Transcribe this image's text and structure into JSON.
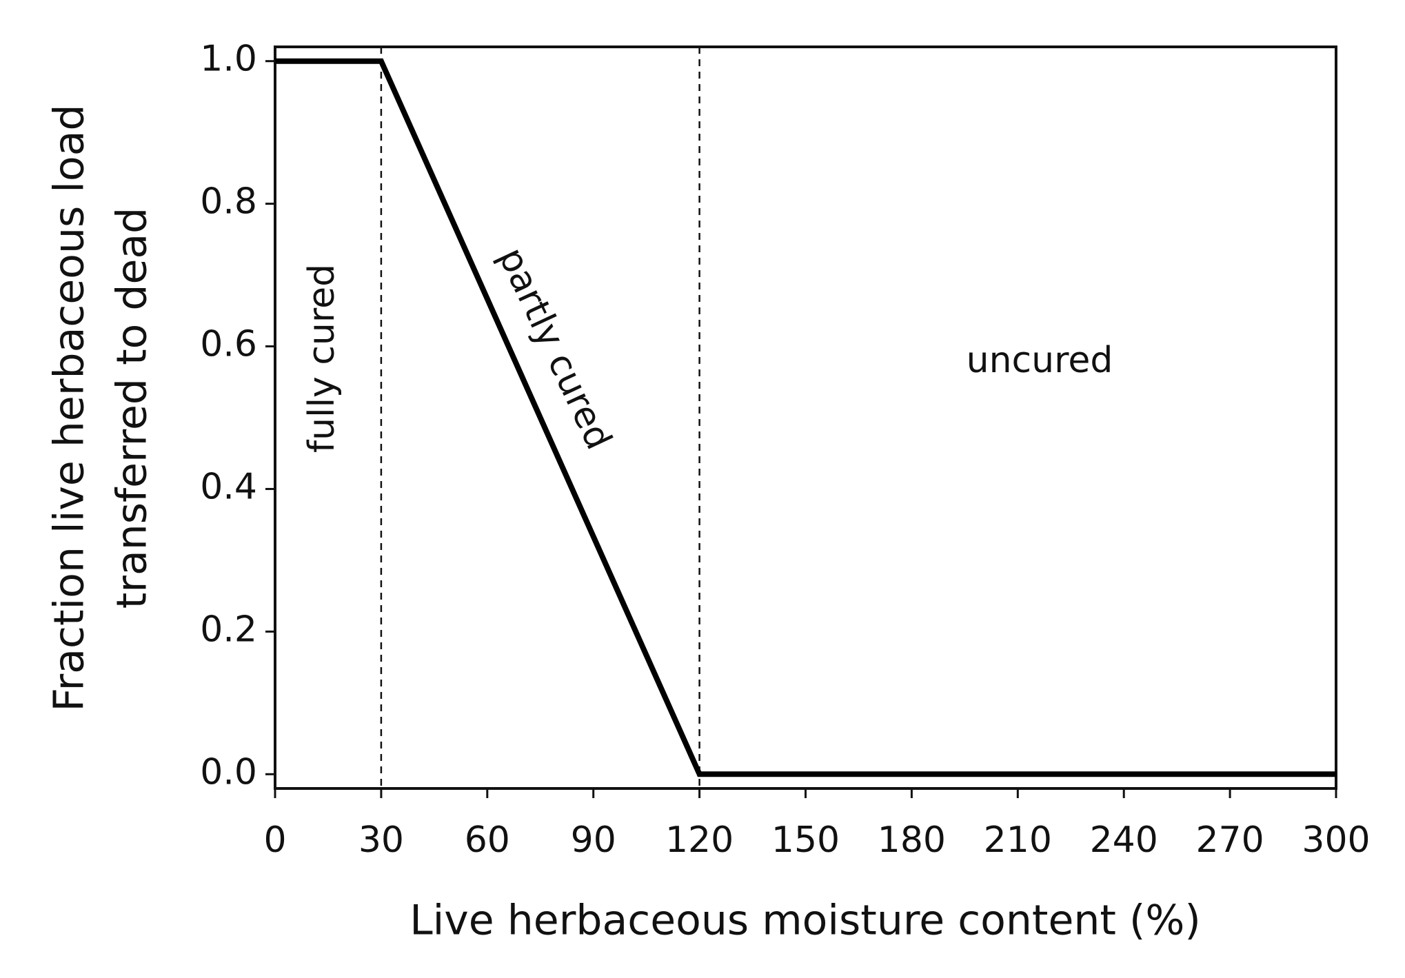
{
  "chart_data": {
    "type": "line",
    "x_label": "Live herbaceous moisture content (%)",
    "y_label": [
      "Fraction live herbaceous load",
      "transferred to dead"
    ],
    "x": [
      0,
      30,
      120,
      300
    ],
    "values": [
      1.0,
      1.0,
      0.0,
      0.0
    ],
    "color": "#000000",
    "xlim": [
      0,
      300
    ],
    "xticks": [
      0,
      30,
      60,
      90,
      120,
      150,
      180,
      210,
      240,
      270,
      300
    ],
    "ylim": [
      -0.02,
      1.02
    ],
    "yticks": [
      {
        "value": 0,
        "label": "0.0"
      },
      0.2,
      0.4,
      0.6,
      0.8,
      {
        "value": 1,
        "label": "1.0"
      }
    ],
    "vlines": [
      30,
      120
    ],
    "annotations": [
      "fully cured",
      "partly cured",
      "uncured"
    ],
    "grid": false
  }
}
